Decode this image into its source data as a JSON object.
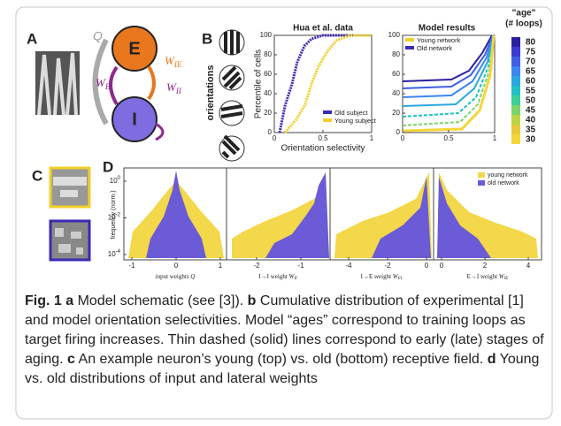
{
  "panel_a": {
    "label": "A",
    "q": "Q",
    "e": "E",
    "i": "I",
    "w_ie": {
      "main": "W",
      "sub": "IE"
    },
    "w_ei": {
      "main": "W",
      "sub": "EI"
    },
    "w_ii": {
      "main": "W",
      "sub": "II"
    }
  },
  "panel_b": {
    "label": "B",
    "orientations": "orientations",
    "hua": {
      "title": "Hua et al. data",
      "ylabel": "Percentile of cells",
      "xlabel": "Orientation selectivity",
      "yticks": [
        0,
        20,
        40,
        60,
        80,
        100
      ],
      "xticks": [
        0,
        0.5,
        1
      ],
      "legend": [
        {
          "name": "Old subject",
          "color": "#3b2bb3"
        },
        {
          "name": "Young subject",
          "color": "#f2cf2a"
        }
      ]
    },
    "model": {
      "title": "Model results",
      "yticks": [
        0,
        20,
        40,
        60,
        80,
        100
      ],
      "xticks": [
        0,
        0.5,
        1
      ],
      "legend": [
        {
          "name": "Young network",
          "color": "#f2cf2a"
        },
        {
          "name": "Old network",
          "color": "#3b2bb3"
        }
      ]
    },
    "colorbar": {
      "title": [
        "\"age\"",
        "(# loops)"
      ],
      "ages": [
        80,
        75,
        70,
        65,
        60,
        55,
        50,
        45,
        40,
        35,
        30
      ],
      "colors": [
        "#2a1f9e",
        "#3a3ad0",
        "#3f5ee6",
        "#3b86f0",
        "#2aa8e0",
        "#1fc2c0",
        "#3ccf9a",
        "#7bd56a",
        "#bcd445",
        "#e8c93a",
        "#f4d63a"
      ]
    }
  },
  "panel_c": {
    "label": "C"
  },
  "panel_d": {
    "label": "D",
    "ylabel": "frequency (norm.)",
    "ytick_base": 10,
    "ytick_exponents": [
      0,
      -2,
      -4
    ],
    "legend": [
      {
        "name": "young network",
        "color": "#f2d84a"
      },
      {
        "name": "old network",
        "color": "#6b5bd6"
      }
    ],
    "panels": [
      {
        "xticks": [
          -1,
          0,
          1
        ],
        "xlabel": {
          "main": "input weights ",
          "sub": "",
          "var": "Q"
        }
      },
      {
        "xticks": [
          -2,
          -1
        ],
        "xlabel": {
          "main": "I→I weight ",
          "sub": "II",
          "var": "W"
        }
      },
      {
        "xticks": [
          -4,
          -2,
          0
        ],
        "xlabel": {
          "main": "I→E weight ",
          "sub": "EI",
          "var": "W"
        }
      },
      {
        "xticks": [
          0,
          2,
          4
        ],
        "xlabel": {
          "main": "E→I weight ",
          "sub": "IE",
          "var": "W"
        }
      }
    ]
  },
  "caption": [
    {
      "bold": "Fig. 1"
    },
    {
      "plain": " "
    },
    {
      "bold": "a"
    },
    {
      "plain": " Model schematic (see [3]). "
    },
    {
      "bold": "b"
    },
    {
      "plain": " Cumulative distribution of experimental [1] and model orientation selectivities. Model “ages” correspond to training loops as target firing increases. Thin dashed (solid) lines correspond to early (late) stages of aging. "
    },
    {
      "bold": "c"
    },
    {
      "plain": " An example neuron’s young (top) vs. old (bottom) receptive field. "
    },
    {
      "bold": "d"
    },
    {
      "plain": " Young vs. old distributions of input and lateral weights"
    }
  ]
}
